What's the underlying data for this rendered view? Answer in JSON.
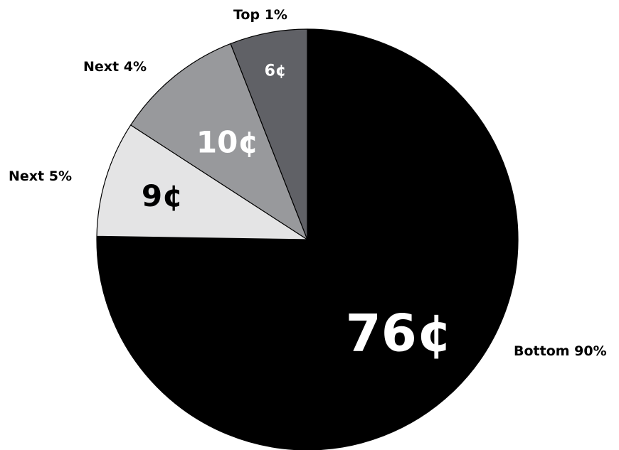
{
  "chart_data": {
    "type": "pie",
    "title": "",
    "legend": "none",
    "slices": [
      {
        "label": "Bottom 90%",
        "value": 76,
        "value_label": "76¢",
        "color": "#000000",
        "text_color": "#ffffff"
      },
      {
        "label": "Next 5%",
        "value": 9,
        "value_label": "9¢",
        "color": "#e4e4e5",
        "text_color": "#000000"
      },
      {
        "label": "Next 4%",
        "value": 10,
        "value_label": "10¢",
        "color": "#98999c",
        "text_color": "#ffffff"
      },
      {
        "label": "Top 1%",
        "value": 6,
        "value_label": "6¢",
        "color": "#606166",
        "text_color": "#ffffff"
      }
    ]
  }
}
